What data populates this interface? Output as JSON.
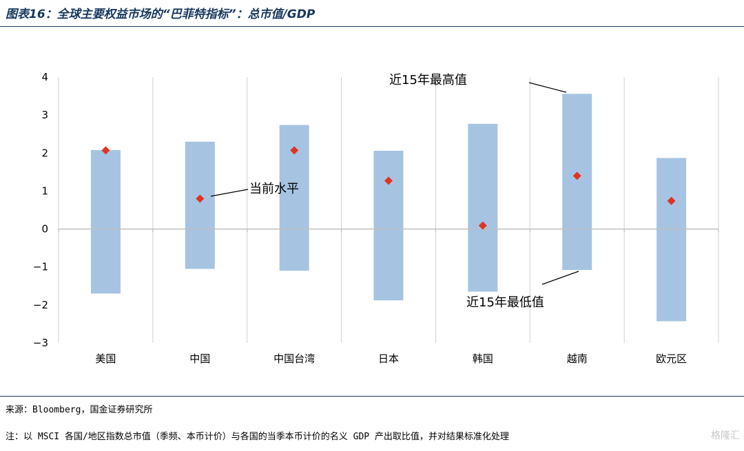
{
  "header": {
    "title": "图表16：全球主要权益市场的“巴菲特指标”：总市值/GDP"
  },
  "chart_data": {
    "type": "range-bar",
    "title": "全球主要权益市场的“巴菲特指标”：总市值/GDP",
    "categories": [
      "美国",
      "中国",
      "中国台湾",
      "日本",
      "韩国",
      "越南",
      "欧元区"
    ],
    "series": [
      {
        "name": "近15年最高值",
        "values": [
          2.08,
          2.3,
          2.74,
          2.06,
          2.77,
          3.56,
          1.87
        ]
      },
      {
        "name": "近15年最低值",
        "values": [
          -1.7,
          -1.05,
          -1.1,
          -1.88,
          -1.65,
          -1.08,
          -2.43
        ]
      },
      {
        "name": "当前水平",
        "values": [
          2.07,
          0.8,
          2.07,
          1.27,
          0.09,
          1.4,
          0.74
        ]
      }
    ],
    "ylim": [
      -3,
      4
    ],
    "yticks": [
      4,
      3,
      2,
      1,
      0,
      -1,
      -2,
      -3
    ],
    "annotations": {
      "current": "当前水平",
      "max": "近15年最高值",
      "min": "近15年最低值"
    },
    "colors": {
      "bar": "#a6c4e2",
      "marker": "#e03423",
      "grid": "#d0d0d0",
      "axis": "#bfbfbf"
    }
  },
  "footer": {
    "source": "来源：Bloomberg，国金证券研究所",
    "note": "注：以 MSCI 各国/地区指数总市值（季频、本币计价）与各国的当季本币计价的名义 GDP 产出取比值，并对结果标准化处理",
    "watermark": "格隆汇"
  }
}
